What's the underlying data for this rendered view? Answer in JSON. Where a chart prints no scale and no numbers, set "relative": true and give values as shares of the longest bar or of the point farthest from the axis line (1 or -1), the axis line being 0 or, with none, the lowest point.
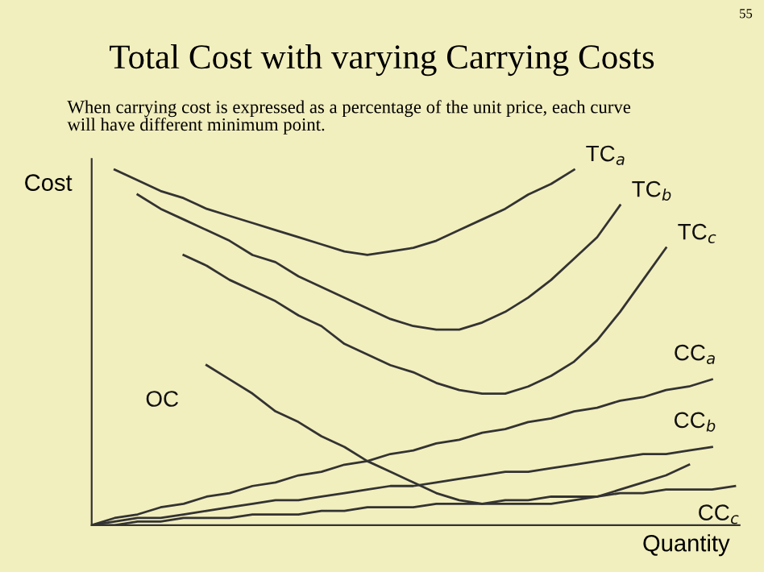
{
  "chart_data": {
    "type": "line",
    "title": "Total Cost with varying Carrying Costs",
    "subtitle": "When carrying cost is expressed as a percentage of the unit price, each curve\nwill have different minimum point.",
    "xlabel": "Quantity",
    "ylabel": "Cost",
    "annotations": [
      "55"
    ],
    "relative": true,
    "legend": false,
    "grid": false,
    "marker": "none",
    "line_style": "solid",
    "categories": [
      null,
      null,
      null,
      null,
      null,
      null,
      null,
      null,
      null,
      null,
      null,
      null,
      null,
      null,
      null,
      null,
      null,
      null,
      null,
      null,
      null,
      null,
      null,
      null,
      null,
      null,
      null,
      null,
      null
    ],
    "series": [
      {
        "name": "TC$_{a}$",
        "color": "#333333",
        "values": [
          null,
          1.0,
          0.97,
          0.94,
          0.92,
          0.89,
          0.87,
          0.85,
          0.83,
          0.81,
          0.79,
          0.77,
          0.76,
          0.77,
          0.78,
          0.8,
          0.83,
          0.86,
          0.89,
          0.93,
          0.96,
          1.0,
          null,
          null,
          null,
          null,
          null,
          null,
          null
        ]
      },
      {
        "name": "TC$_{b}$",
        "color": "#333333",
        "values": [
          null,
          null,
          0.93,
          0.89,
          0.86,
          0.83,
          0.8,
          0.76,
          0.74,
          0.7,
          0.67,
          0.64,
          0.61,
          0.58,
          0.56,
          0.55,
          0.55,
          0.57,
          0.6,
          0.64,
          0.69,
          0.75,
          0.81,
          0.9,
          null,
          null,
          null,
          null,
          null
        ]
      },
      {
        "name": "TC$_{c}$",
        "color": "#333333",
        "values": [
          null,
          null,
          null,
          null,
          0.76,
          0.73,
          0.69,
          0.66,
          0.63,
          0.59,
          0.56,
          0.51,
          0.48,
          0.45,
          0.43,
          0.4,
          0.38,
          0.37,
          0.37,
          0.39,
          0.42,
          0.46,
          0.52,
          0.6,
          0.69,
          0.78,
          null,
          null,
          null
        ]
      },
      {
        "name": "OC",
        "color": "#333333",
        "values": [
          null,
          null,
          null,
          null,
          null,
          0.45,
          0.41,
          0.37,
          0.32,
          0.29,
          0.25,
          0.22,
          0.18,
          0.15,
          0.12,
          0.09,
          0.07,
          0.06,
          0.06,
          0.06,
          0.06,
          0.07,
          0.08,
          0.1,
          0.12,
          0.14,
          0.17,
          null,
          null
        ]
      },
      {
        "name": "CC$_{a}$",
        "color": "#333333",
        "values": [
          0,
          0.02,
          0.03,
          0.05,
          0.06,
          0.08,
          0.09,
          0.11,
          0.12,
          0.14,
          0.15,
          0.17,
          0.18,
          0.2,
          0.21,
          0.23,
          0.24,
          0.26,
          0.27,
          0.29,
          0.3,
          0.32,
          0.33,
          0.35,
          0.36,
          0.38,
          0.39,
          0.41,
          null
        ]
      },
      {
        "name": "CC$_{b}$",
        "color": "#333333",
        "values": [
          0,
          0.01,
          0.02,
          0.02,
          0.03,
          0.04,
          0.05,
          0.06,
          0.07,
          0.07,
          0.08,
          0.09,
          0.1,
          0.11,
          0.11,
          0.12,
          0.13,
          0.14,
          0.15,
          0.15,
          0.16,
          0.17,
          0.18,
          0.19,
          0.2,
          0.2,
          0.21,
          0.22,
          null
        ]
      },
      {
        "name": "CC$_{c}$",
        "color": "#333333",
        "values": [
          0,
          0,
          0.01,
          0.01,
          0.02,
          0.02,
          0.02,
          0.03,
          0.03,
          0.03,
          0.04,
          0.04,
          0.05,
          0.05,
          0.05,
          0.06,
          0.06,
          0.06,
          0.07,
          0.07,
          0.08,
          0.08,
          0.08,
          0.09,
          0.09,
          0.1,
          0.1,
          0.1,
          0.11
        ]
      }
    ]
  }
}
